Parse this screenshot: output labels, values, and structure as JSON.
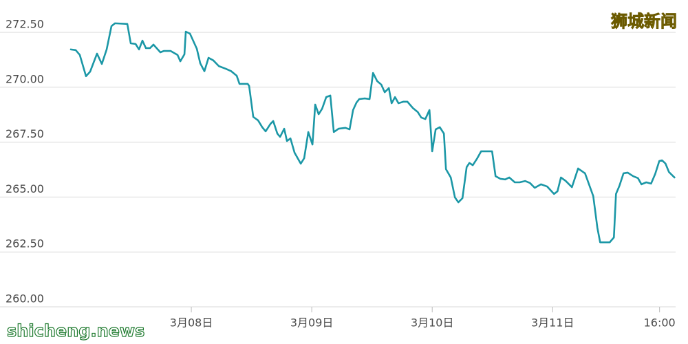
{
  "chart_data": {
    "type": "line",
    "watermarks": {
      "top_right": "狮城新闻",
      "bottom_left": "shicheng.news"
    },
    "xlim": [
      0,
      120.5
    ],
    "xticks": [
      {
        "value": 24,
        "label": "3月08日"
      },
      {
        "value": 48,
        "label": "3月09日"
      },
      {
        "value": 72,
        "label": "3月10日"
      },
      {
        "value": 96,
        "label": "3月11日"
      },
      {
        "value": 117.3,
        "label": "16:00"
      }
    ],
    "ylim": [
      260,
      273
    ],
    "yticks": [
      {
        "value": 260,
        "label": "260.00"
      },
      {
        "value": 262.5,
        "label": "262.50"
      },
      {
        "value": 265,
        "label": "265.00"
      },
      {
        "value": 267.5,
        "label": "267.50"
      },
      {
        "value": 270,
        "label": "270.00"
      },
      {
        "value": 272.5,
        "label": "272.50"
      }
    ],
    "grid": true,
    "x": [
      0,
      0.96,
      1.78,
      3.02,
      3.84,
      5.21,
      6.17,
      7.13,
      8.09,
      8.78,
      11.25,
      11.93,
      12.89,
      13.58,
      14.26,
      14.95,
      15.77,
      16.46,
      17.83,
      18.51,
      19.89,
      21.26,
      21.81,
      22.63,
      22.9,
      23.73,
      25.1,
      25.78,
      26.61,
      27.43,
      28.39,
      29.49,
      30.86,
      31.95,
      33.05,
      33.6,
      35.25,
      35.52,
      36.34,
      37.3,
      38.13,
      38.81,
      39.77,
      40.32,
      41.14,
      41.69,
      42.51,
      43.06,
      43.75,
      44.57,
      45.81,
      46.49,
      47.31,
      48.14,
      48.69,
      49.37,
      50.06,
      50.88,
      51.7,
      52.39,
      53.35,
      54.72,
      55.54,
      56.23,
      56.91,
      57.46,
      58.56,
      59.52,
      60.21,
      61.03,
      61.85,
      62.54,
      63.36,
      63.91,
      64.59,
      65.28,
      66.24,
      67.06,
      68.16,
      69.12,
      69.81,
      70.63,
      71.45,
      72.0,
      72.69,
      73.51,
      74.33,
      74.74,
      75.7,
      76.53,
      77.21,
      78.03,
      78.86,
      79.41,
      80.09,
      80.91,
      81.74,
      83.93,
      84.62,
      85.58,
      86.54,
      87.36,
      88.46,
      89.42,
      90.51,
      91.47,
      92.43,
      93.67,
      94.9,
      96.27,
      96.96,
      97.65,
      98.61,
      99.84,
      101.07,
      102.45,
      104.09,
      104.91,
      105.46,
      107.38,
      108.2,
      108.62,
      109.3,
      110.12,
      110.95,
      112.04,
      113.0,
      113.69,
      114.65,
      115.61,
      116.43,
      117.25,
      117.8,
      118.49,
      119.17,
      120.27
    ],
    "series": [
      {
        "color": "#1b97a6",
        "values": [
          271.72,
          271.69,
          271.47,
          270.5,
          270.71,
          271.53,
          271.06,
          271.72,
          272.78,
          272.91,
          272.88,
          272.0,
          271.97,
          271.72,
          272.12,
          271.78,
          271.78,
          271.94,
          271.59,
          271.65,
          271.65,
          271.47,
          271.18,
          271.5,
          272.53,
          272.44,
          271.75,
          271.09,
          270.73,
          271.34,
          271.22,
          270.96,
          270.84,
          270.73,
          270.52,
          270.15,
          270.15,
          270.06,
          268.65,
          268.49,
          268.18,
          267.99,
          268.33,
          268.46,
          267.89,
          267.74,
          268.11,
          267.55,
          267.67,
          267.02,
          266.52,
          266.77,
          267.96,
          267.39,
          269.21,
          268.77,
          269.02,
          269.55,
          269.62,
          267.96,
          268.11,
          268.15,
          268.08,
          268.96,
          269.3,
          269.46,
          269.49,
          269.46,
          270.65,
          270.28,
          270.12,
          269.77,
          269.96,
          269.27,
          269.55,
          269.27,
          269.34,
          269.34,
          269.05,
          268.87,
          268.62,
          268.55,
          268.96,
          267.08,
          268.08,
          268.18,
          267.89,
          266.27,
          265.89,
          264.98,
          264.76,
          264.95,
          266.36,
          266.55,
          266.45,
          266.74,
          267.08,
          267.08,
          265.95,
          265.83,
          265.8,
          265.89,
          265.67,
          265.67,
          265.73,
          265.64,
          265.42,
          265.58,
          265.48,
          265.14,
          265.26,
          265.89,
          265.73,
          265.45,
          266.3,
          266.08,
          265.04,
          263.6,
          262.94,
          262.94,
          263.16,
          265.14,
          265.51,
          266.08,
          266.11,
          265.95,
          265.86,
          265.58,
          265.67,
          265.61,
          266.05,
          266.64,
          266.67,
          266.52,
          266.14,
          265.89
        ]
      }
    ]
  }
}
